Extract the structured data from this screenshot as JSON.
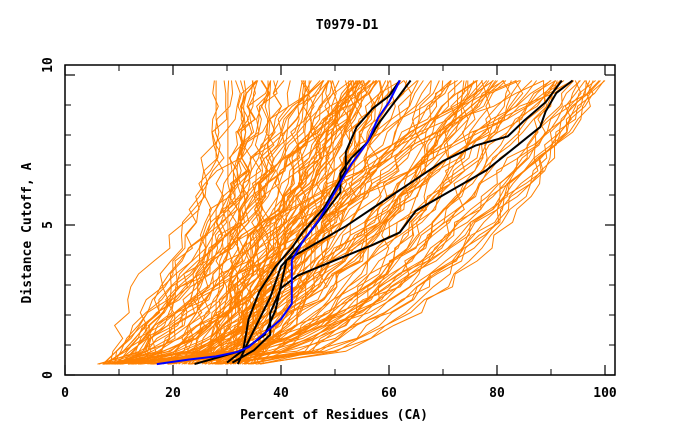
{
  "chart_data": {
    "type": "line",
    "title": "T0979-D1",
    "xlabel": "Percent of Residues (CA)",
    "ylabel": "Distance Cutoff, A",
    "xlim": [
      0,
      100
    ],
    "ylim": [
      0,
      10
    ],
    "x_ticks": [
      0,
      20,
      40,
      60,
      80,
      100
    ],
    "x_tick_labels": [
      "0",
      "20",
      "40",
      "60",
      "80",
      "100"
    ],
    "x_minor_ticks": [
      10,
      30,
      50,
      70,
      90
    ],
    "y_ticks": [
      0,
      5,
      10
    ],
    "y_tick_labels": [
      "0",
      "5",
      "10"
    ],
    "y_minor_ticks": [
      1,
      2,
      3,
      4,
      6,
      7,
      8,
      9
    ],
    "grid": false,
    "colors": {
      "background_models": "#ff8000",
      "highlight_blue": "#0000ff",
      "highlight_black": "#000000",
      "axis": "#000000"
    },
    "series": [
      {
        "name": "blue-model",
        "color": "#0000ff",
        "x": [
          17,
          23,
          28,
          32,
          34,
          36,
          40,
          42,
          42,
          42,
          44,
          47,
          50,
          53,
          56,
          58,
          60,
          62
        ],
        "y": [
          0.35,
          0.5,
          0.6,
          0.75,
          0.9,
          1.2,
          1.8,
          2.3,
          3.0,
          3.7,
          4.3,
          5.0,
          5.9,
          6.8,
          7.5,
          8.3,
          8.8,
          9.5
        ]
      },
      {
        "name": "black-model-1",
        "color": "#000000",
        "x": [
          24,
          29,
          33,
          34,
          36,
          39,
          42,
          44,
          48,
          50,
          52,
          52,
          54,
          57,
          60,
          62
        ],
        "y": [
          0.35,
          0.6,
          0.8,
          1.8,
          2.7,
          3.5,
          4.1,
          4.6,
          5.4,
          6.0,
          6.6,
          7.2,
          8.0,
          8.6,
          9.0,
          9.5
        ]
      },
      {
        "name": "black-model-2",
        "color": "#000000",
        "x": [
          32,
          34,
          36,
          38,
          40,
          44,
          48,
          51,
          51,
          53,
          56,
          58,
          61,
          64
        ],
        "y": [
          0.35,
          1.1,
          1.8,
          2.5,
          3.5,
          4.3,
          5.2,
          5.9,
          6.5,
          7.0,
          7.5,
          8.1,
          8.8,
          9.5
        ]
      },
      {
        "name": "black-model-3",
        "color": "#000000",
        "x": [
          30,
          33,
          37,
          39,
          41,
          46,
          52,
          58,
          64,
          70,
          76,
          82,
          85,
          89,
          92
        ],
        "y": [
          0.4,
          0.8,
          1.3,
          2.1,
          3.7,
          4.2,
          4.8,
          5.5,
          6.2,
          6.9,
          7.4,
          7.7,
          8.2,
          8.8,
          9.5
        ]
      },
      {
        "name": "black-model-4",
        "color": "#000000",
        "x": [
          31,
          35,
          38,
          38,
          40,
          43,
          50,
          57,
          62,
          65,
          72,
          78,
          83,
          88,
          89,
          91,
          94
        ],
        "y": [
          0.4,
          0.8,
          1.3,
          2.0,
          2.8,
          3.2,
          3.7,
          4.2,
          4.6,
          5.3,
          6.0,
          6.6,
          7.3,
          8.0,
          8.5,
          9.1,
          9.5
        ]
      }
    ],
    "background_series_count": 150
  }
}
